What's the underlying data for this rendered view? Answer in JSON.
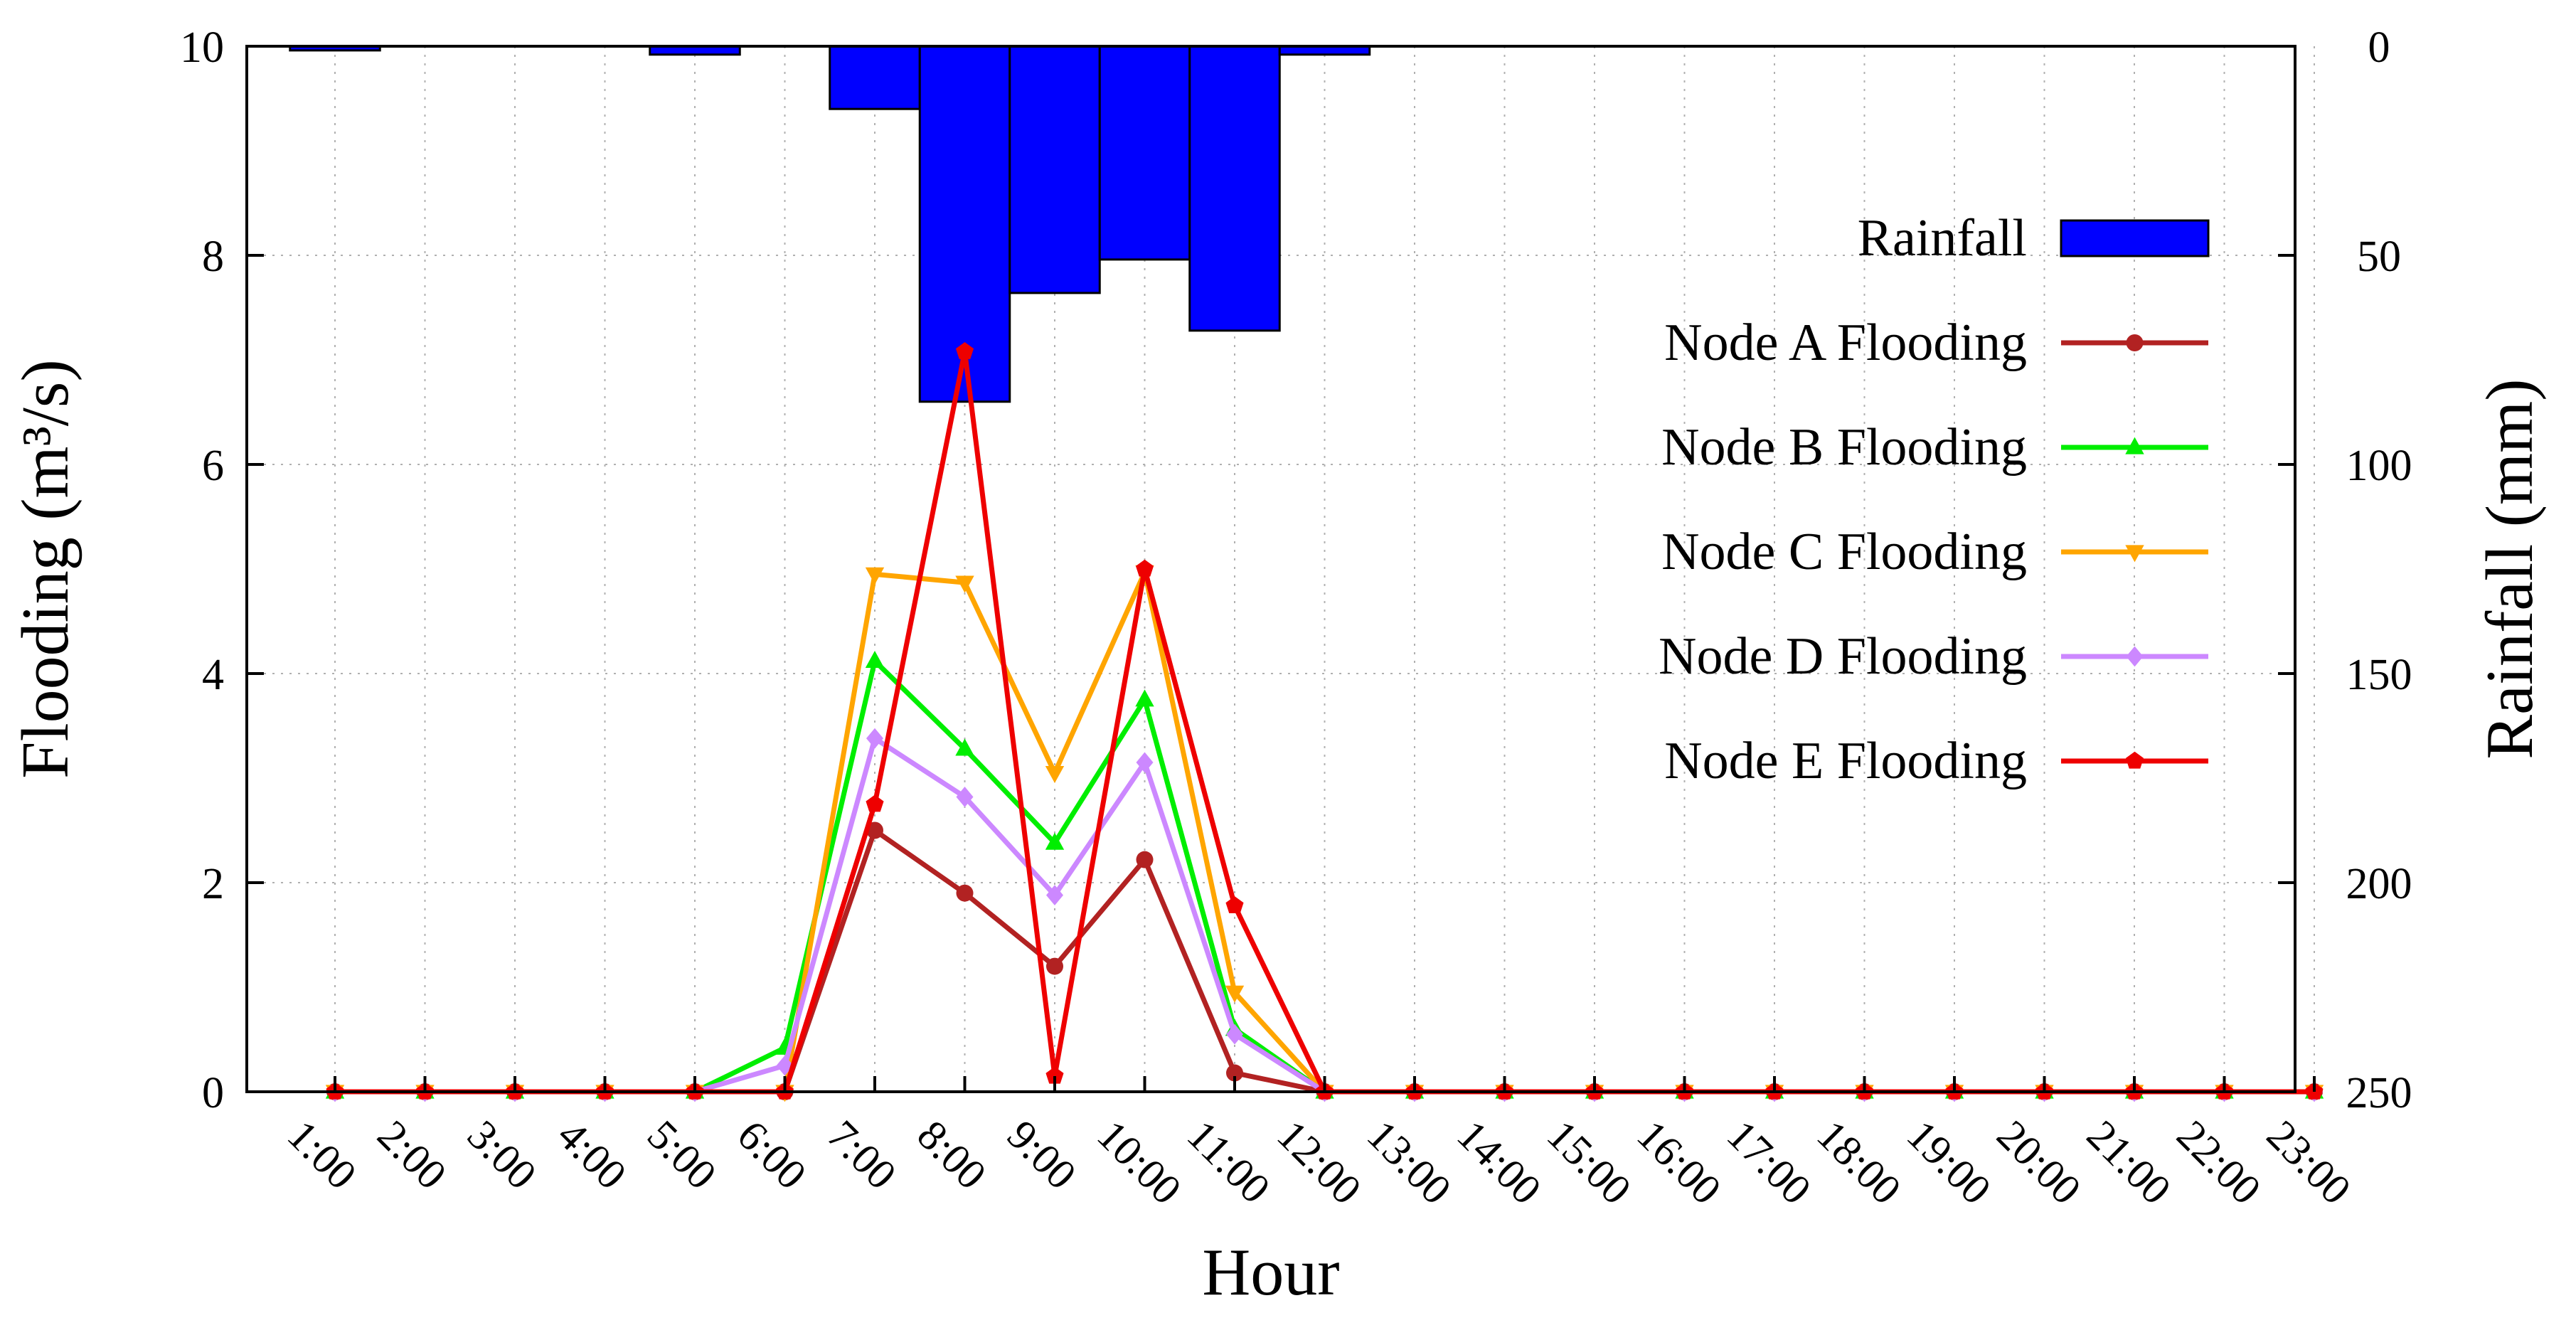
{
  "chart_data": {
    "type": "line",
    "title": "",
    "xlabel": "Hour",
    "ylabel": "Flooding (m³/s)",
    "y2label": "Rainfall (mm)",
    "categories": [
      "1:00",
      "2:00",
      "3:00",
      "4:00",
      "5:00",
      "6:00",
      "7:00",
      "8:00",
      "9:00",
      "10:00",
      "11:00",
      "12:00",
      "13:00",
      "14:00",
      "15:00",
      "16:00",
      "17:00",
      "18:00",
      "19:00",
      "20:00",
      "21:00",
      "22:00",
      "23:00"
    ],
    "ylim": [
      0,
      10
    ],
    "yticks": [
      0,
      2,
      4,
      6,
      8,
      10
    ],
    "y2lim": [
      0,
      250
    ],
    "y2_inverted": true,
    "y2ticks": [
      0,
      50,
      100,
      150,
      200,
      250
    ],
    "grid": true,
    "legend_position": "right",
    "bars": {
      "name": "Rainfall",
      "type": "bar",
      "axis": "right",
      "color": "#0000ff",
      "values": [
        1,
        0,
        0,
        0,
        2,
        0,
        15,
        85,
        59,
        51,
        68,
        2,
        0,
        0,
        0,
        0,
        0,
        0,
        0,
        0,
        0,
        0,
        0
      ]
    },
    "series": [
      {
        "name": "Node A Flooding",
        "color": "#b22222",
        "marker": "circle",
        "values": [
          0,
          0,
          0,
          0,
          0,
          0,
          2.5,
          1.9,
          1.2,
          2.22,
          0.18,
          0,
          0,
          0,
          0,
          0,
          0,
          0,
          0,
          0,
          0,
          0,
          0
        ]
      },
      {
        "name": "Node B Flooding",
        "color": "#00ee00",
        "marker": "triangle-up",
        "values": [
          0,
          0,
          0,
          0,
          0,
          0.42,
          4.12,
          3.28,
          2.38,
          3.75,
          0.6,
          0,
          0,
          0,
          0,
          0,
          0,
          0,
          0,
          0,
          0,
          0,
          0
        ]
      },
      {
        "name": "Node C Flooding",
        "color": "#ffa500",
        "marker": "triangle-down",
        "values": [
          0,
          0,
          0,
          0,
          0,
          0,
          4.95,
          4.87,
          3.05,
          4.97,
          0.95,
          0,
          0,
          0,
          0,
          0,
          0,
          0,
          0,
          0,
          0,
          0,
          0
        ]
      },
      {
        "name": "Node D Flooding",
        "color": "#cc88ff",
        "marker": "diamond",
        "values": [
          0,
          0,
          0,
          0,
          0,
          0.25,
          3.38,
          2.82,
          1.88,
          3.15,
          0.55,
          0,
          0,
          0,
          0,
          0,
          0,
          0,
          0,
          0,
          0,
          0,
          0
        ]
      },
      {
        "name": "Node E Flooding",
        "color": "#ee0000",
        "marker": "pentagon",
        "values": [
          0,
          0,
          0,
          0,
          0,
          0,
          2.75,
          7.08,
          0.15,
          5.0,
          1.78,
          0,
          0,
          0,
          0,
          0,
          0,
          0,
          0,
          0,
          0,
          0,
          0
        ]
      }
    ]
  }
}
